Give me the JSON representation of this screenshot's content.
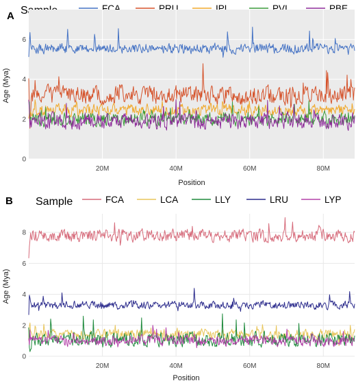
{
  "chart_data": [
    {
      "type": "line",
      "panel": "A",
      "legend_title": "Sample",
      "xlabel": "Position",
      "ylabel": "Age (Mya)",
      "xlim": [
        0,
        88500000
      ],
      "ylim": [
        0,
        7.5
      ],
      "x_ticks": [
        20000000,
        40000000,
        60000000,
        80000000
      ],
      "x_tick_labels": [
        "20M",
        "40M",
        "60M",
        "80M"
      ],
      "y_ticks": [
        0,
        2,
        4,
        6
      ],
      "y_tick_labels": [
        "0",
        "2",
        "4",
        "6"
      ],
      "background": "#ebebeb",
      "grid": true,
      "legend_position": "top",
      "series": [
        {
          "name": "FCA",
          "color": "#4472c4",
          "mean": 5.55,
          "noise": 0.22,
          "spike": 0.9
        },
        {
          "name": "PRU",
          "color": "#d5522a",
          "mean": 3.2,
          "noise": 0.4,
          "spike": 1.0
        },
        {
          "name": "IPL",
          "color": "#f0a92c",
          "mean": 2.45,
          "noise": 0.25,
          "spike": 0.5
        },
        {
          "name": "PVI",
          "color": "#3a9a3a",
          "mean": 2.0,
          "noise": 0.3,
          "spike": 0.6
        },
        {
          "name": "PBE",
          "color": "#8e2b9a",
          "mean": 1.9,
          "noise": 0.35,
          "spike": 0.6
        }
      ]
    },
    {
      "type": "line",
      "panel": "B",
      "legend_title": "Sample",
      "xlabel": "Position",
      "ylabel": "Age (Mya)",
      "xlim": [
        0,
        88500000
      ],
      "ylim": [
        0,
        9.2
      ],
      "x_ticks": [
        20000000,
        40000000,
        60000000,
        80000000
      ],
      "x_tick_labels": [
        "20M",
        "40M",
        "60M",
        "80M"
      ],
      "y_ticks": [
        0,
        2,
        4,
        6,
        8
      ],
      "y_tick_labels": [
        "0",
        "2",
        "4",
        "6",
        "8"
      ],
      "background": "#ffffff",
      "grid": true,
      "legend_position": "top",
      "series": [
        {
          "name": "FCA",
          "color": "#d66a7a",
          "mean": 7.8,
          "noise": 0.35,
          "spike": 0.8
        },
        {
          "name": "LCA",
          "color": "#e8c55a",
          "mean": 1.4,
          "noise": 0.3,
          "spike": 0.7
        },
        {
          "name": "LLY",
          "color": "#1e8a3c",
          "mean": 1.1,
          "noise": 0.4,
          "spike": 1.0
        },
        {
          "name": "LRU",
          "color": "#2b2b8c",
          "mean": 3.3,
          "noise": 0.22,
          "spike": 0.7
        },
        {
          "name": "LYP",
          "color": "#b340a8",
          "mean": 1.0,
          "noise": 0.3,
          "spike": 0.6
        }
      ]
    }
  ]
}
